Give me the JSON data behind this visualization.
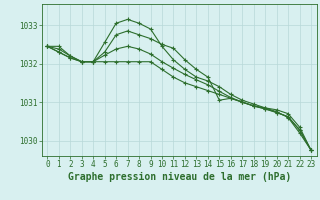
{
  "xlabel": "Graphe pression niveau de la mer (hPa)",
  "background_color": "#d8f0f0",
  "grid_color": "#b8d8d8",
  "line_color": "#2d6e2d",
  "xlim": [
    -0.5,
    23.5
  ],
  "ylim": [
    1029.6,
    1033.55
  ],
  "yticks": [
    1030,
    1031,
    1032,
    1033
  ],
  "xticks": [
    0,
    1,
    2,
    3,
    4,
    5,
    6,
    7,
    8,
    9,
    10,
    11,
    12,
    13,
    14,
    15,
    16,
    17,
    18,
    19,
    20,
    21,
    22,
    23
  ],
  "line1": [
    1032.45,
    1032.45,
    1032.2,
    1032.05,
    1032.05,
    1032.3,
    1032.75,
    1032.85,
    1032.75,
    1032.65,
    1032.5,
    1032.4,
    1032.1,
    1031.85,
    1031.65,
    1031.05,
    1031.1,
    1031.0,
    1030.9,
    1030.85,
    1030.75,
    1030.6,
    1030.2,
    1029.75
  ],
  "line2": [
    1032.45,
    1032.3,
    1032.15,
    1032.05,
    1032.05,
    1032.55,
    1033.05,
    1033.15,
    1033.05,
    1032.9,
    1032.45,
    1032.1,
    1031.85,
    1031.65,
    1031.55,
    1031.4,
    1031.2,
    1031.05,
    1030.95,
    1030.85,
    1030.8,
    1030.7,
    1030.35,
    1029.75
  ],
  "line3": [
    1032.45,
    1032.3,
    1032.15,
    1032.05,
    1032.05,
    1032.05,
    1032.05,
    1032.05,
    1032.05,
    1032.05,
    1031.85,
    1031.65,
    1031.5,
    1031.4,
    1031.3,
    1031.2,
    1031.1,
    1031.0,
    1030.9,
    1030.82,
    1030.73,
    1030.62,
    1030.28,
    1029.75
  ],
  "line4": [
    1032.45,
    1032.38,
    1032.2,
    1032.05,
    1032.05,
    1032.22,
    1032.38,
    1032.45,
    1032.38,
    1032.25,
    1032.05,
    1031.88,
    1031.72,
    1031.58,
    1031.45,
    1031.28,
    1031.12,
    1031.0,
    1030.9,
    1030.83,
    1030.73,
    1030.62,
    1030.27,
    1029.75
  ],
  "xlabel_fontsize": 7,
  "tick_fontsize": 5.5,
  "linewidth": 0.8,
  "markersize": 2.5,
  "markeredgewidth": 0.8
}
